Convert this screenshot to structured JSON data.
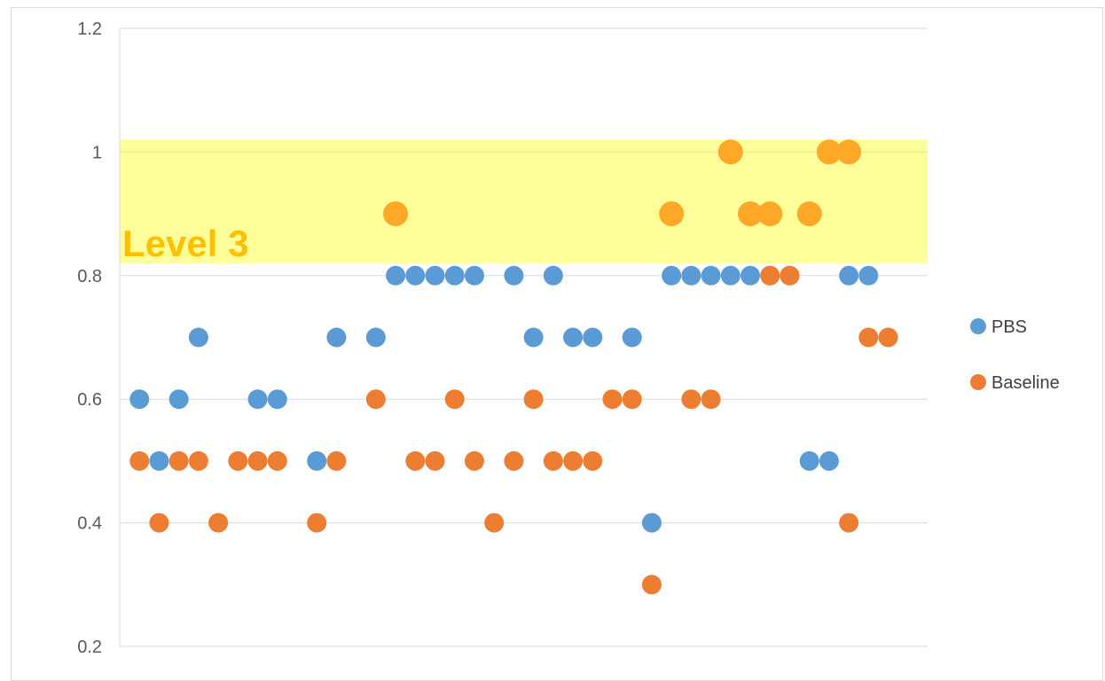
{
  "chart_data": {
    "type": "scatter",
    "title": "",
    "xlabel": "",
    "ylabel": "",
    "xlim": [
      0,
      41
    ],
    "ylim": [
      0.2,
      1.2
    ],
    "y_ticks": [
      "0.2",
      "0.4",
      "0.6",
      "0.8",
      "1",
      "1.2"
    ],
    "y_tick_values": [
      0.2,
      0.4,
      0.6,
      0.8,
      1.0,
      1.2
    ],
    "grid": true,
    "legend_position": "right",
    "band": {
      "label": "Level 3",
      "y_from": 0.82,
      "y_to": 1.02,
      "color": "#ffff99",
      "label_color": "#ffc000"
    },
    "series": [
      {
        "name": "PBS",
        "color": "#5b9bd5",
        "x": [
          1,
          2,
          3,
          4,
          7,
          8,
          10,
          11,
          13,
          14,
          15,
          16,
          17,
          18,
          20,
          21,
          22,
          23,
          24,
          26,
          27,
          28,
          29,
          30,
          31,
          32,
          33,
          34,
          35,
          36,
          37,
          38
        ],
        "y": [
          0.6,
          0.5,
          0.6,
          0.7,
          0.6,
          0.6,
          0.5,
          0.7,
          0.7,
          0.8,
          0.8,
          0.8,
          0.8,
          0.8,
          0.8,
          0.7,
          0.8,
          0.7,
          0.7,
          0.7,
          0.4,
          0.8,
          0.8,
          0.8,
          0.8,
          0.8,
          0.8,
          0.8,
          0.5,
          0.5,
          0.8,
          0.8
        ]
      },
      {
        "name": "Baseline",
        "color": "#ed7d31",
        "x": [
          1,
          2,
          3,
          4,
          5,
          6,
          7,
          8,
          10,
          11,
          13,
          15,
          16,
          17,
          18,
          19,
          20,
          21,
          22,
          23,
          24,
          25,
          26,
          27,
          29,
          30,
          33,
          34,
          37,
          38,
          39
        ],
        "y": [
          0.5,
          0.4,
          0.5,
          0.5,
          0.4,
          0.5,
          0.5,
          0.5,
          0.4,
          0.5,
          0.6,
          0.5,
          0.5,
          0.6,
          0.5,
          0.4,
          0.5,
          0.6,
          0.5,
          0.5,
          0.5,
          0.6,
          0.6,
          0.3,
          0.6,
          0.6,
          0.8,
          0.8,
          0.4,
          0.7,
          0.7
        ]
      },
      {
        "name": "",
        "color": "#ffa726",
        "size": "large",
        "x": [
          14,
          28,
          31,
          32,
          33,
          35,
          36,
          37
        ],
        "y": [
          0.9,
          0.9,
          1.0,
          0.9,
          0.9,
          0.9,
          1.0,
          1.0
        ]
      }
    ]
  }
}
